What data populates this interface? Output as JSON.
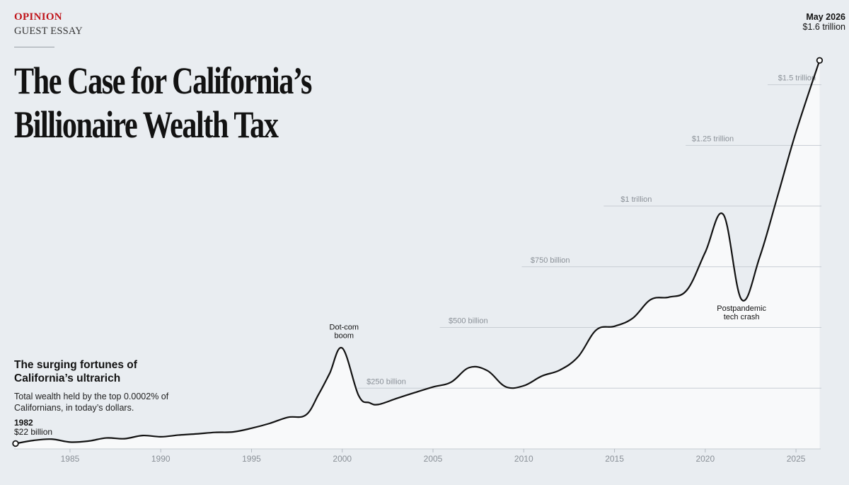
{
  "header": {
    "kicker": "OPINION",
    "section": "GUEST ESSAY",
    "headline_line1": "The Case for California’s",
    "headline_line2": "Billionaire Wealth Tax"
  },
  "chart_data": {
    "type": "area",
    "title": "The surging fortunes of California’s ultrarich",
    "subtitle": "Total wealth held by the top 0.0002% of Californians, in today’s dollars.",
    "xlabel": "",
    "ylabel": "",
    "xlim": [
      1982,
      2026.4
    ],
    "ylim": [
      0,
      1700
    ],
    "x_ticks": [
      1985,
      1990,
      1995,
      2000,
      2005,
      2010,
      2015,
      2020,
      2025
    ],
    "gridlines": [
      {
        "value": 250,
        "label": "$250 billion"
      },
      {
        "value": 500,
        "label": "$500 billion"
      },
      {
        "value": 750,
        "label": "$750 billion"
      },
      {
        "value": 1000,
        "label": "$1 trillion"
      },
      {
        "value": 1250,
        "label": "$1.25 trillion"
      },
      {
        "value": 1500,
        "label": "$1.5 trillion"
      }
    ],
    "series": [
      {
        "name": "",
        "x": [
          1982,
          1983,
          1984,
          1985,
          1986,
          1987,
          1988,
          1989,
          1990,
          1991,
          1992,
          1993,
          1994,
          1995,
          1996,
          1997,
          1998,
          1998.7,
          1999.3,
          2000,
          2000.9,
          2001.5,
          2002,
          2003,
          2004,
          2005,
          2006,
          2007,
          2008,
          2009,
          2010,
          2011,
          2012,
          2013,
          2014,
          2015,
          2016,
          2017,
          2018,
          2019,
          2020,
          2021,
          2022,
          2023,
          2024,
          2025,
          2026.3
        ],
        "y": [
          22,
          35,
          40,
          28,
          32,
          45,
          42,
          55,
          50,
          57,
          62,
          68,
          70,
          85,
          105,
          130,
          140,
          225,
          310,
          415,
          220,
          190,
          183,
          208,
          232,
          255,
          275,
          335,
          322,
          256,
          260,
          300,
          325,
          380,
          490,
          505,
          538,
          615,
          625,
          655,
          810,
          965,
          615,
          790,
          1045,
          1305,
          1600
        ]
      }
    ],
    "endpoints": {
      "start": {
        "x": 1982,
        "y": 22,
        "label": "1982",
        "value": "$22 billion"
      },
      "end": {
        "x": 2026.3,
        "y": 1600,
        "label": "May 2026",
        "value": "$1.6 trillion"
      }
    },
    "annotations": [
      {
        "x": 2000.1,
        "y": 415,
        "lines": [
          "Dot-com",
          "boom"
        ],
        "position": "above"
      },
      {
        "x": 2022,
        "y": 615,
        "lines": [
          "Postpandemic",
          "tech crash"
        ],
        "position": "below"
      }
    ],
    "grid": true,
    "legend": "none"
  },
  "colors": {
    "background": "#e9edf1",
    "area_fill": "#f8f9fa",
    "line": "#121212",
    "gridline": "#c8cdd3",
    "kicker": "#c0141a",
    "tick_text": "#8a9097"
  }
}
